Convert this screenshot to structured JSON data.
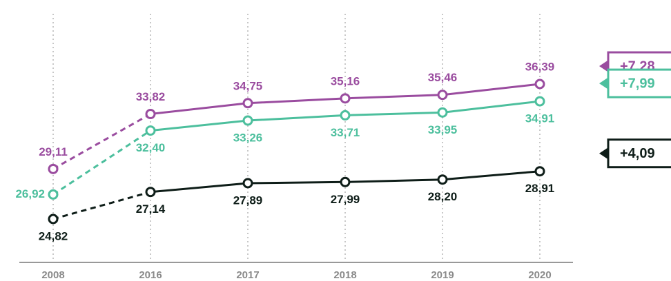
{
  "chart_data": {
    "type": "line",
    "categories": [
      "2008",
      "2016",
      "2017",
      "2018",
      "2019",
      "2020"
    ],
    "series": [
      {
        "name": null,
        "color": "#9a4c9f",
        "values": [
          29.11,
          33.82,
          34.75,
          35.16,
          35.46,
          36.39
        ],
        "value_labels": [
          "29,11",
          "33,82",
          "34,75",
          "35,16",
          "35,46",
          "36,39"
        ],
        "change": "+7,28"
      },
      {
        "name": null,
        "color": "#4cbf9d",
        "values": [
          26.92,
          32.4,
          33.26,
          33.71,
          33.95,
          34.91
        ],
        "value_labels": [
          "26,92",
          "32,40",
          "33,26",
          "33,71",
          "33,95",
          "34,91"
        ],
        "change": "+7,99"
      },
      {
        "name": null,
        "color": "#0e1d18",
        "values": [
          24.82,
          27.14,
          27.89,
          27.99,
          28.2,
          28.91
        ],
        "value_labels": [
          "24,82",
          "27,14",
          "27,89",
          "27,99",
          "28,20",
          "28,91"
        ],
        "change": "+4,09"
      }
    ],
    "grid": true
  }
}
